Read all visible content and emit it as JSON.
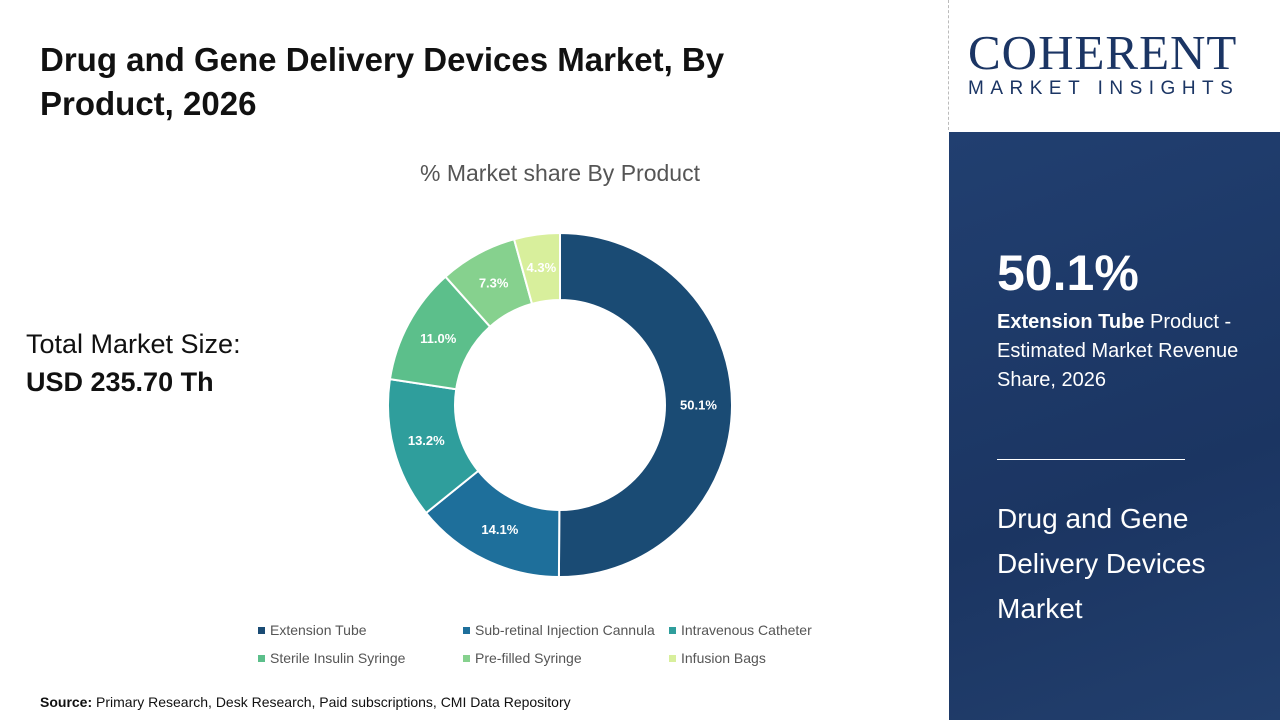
{
  "title": "Drug and Gene Delivery Devices Market, By Product, 2026",
  "total": {
    "label": "Total Market Size:",
    "value": "USD 235.70 Th"
  },
  "source": {
    "label": "Source:",
    "text": " Primary Research, Desk Research, Paid subscriptions, CMI Data Repository"
  },
  "logo": {
    "line1": "COHERENT",
    "line2": "MARKET INSIGHTS"
  },
  "panel": {
    "pct": "50.1%",
    "desc_bold": "Extension Tube",
    "desc_rest": " Product - Estimated Market Revenue Share, 2026",
    "market": "Drug and Gene Delivery Devices Market"
  },
  "chart_data": {
    "type": "pie",
    "donut": true,
    "title": "% Market share By Product",
    "categories": [
      "Extension Tube",
      "Sub-retinal Injection Cannula",
      "Intravenous Catheter",
      "Sterile Insulin Syringe",
      "Pre-filled Syringe",
      "Infusion Bags"
    ],
    "values": [
      50.1,
      14.1,
      13.2,
      11.0,
      7.3,
      4.3
    ],
    "labels": [
      "50.1%",
      "14.1%",
      "13.2%",
      "11.0%",
      "7.3%",
      "4.3%"
    ],
    "colors": [
      "#1a4b74",
      "#1e6f9b",
      "#2f9e9c",
      "#5cbf8b",
      "#86d18e",
      "#d8ef9c"
    ],
    "legend_position": "bottom"
  }
}
